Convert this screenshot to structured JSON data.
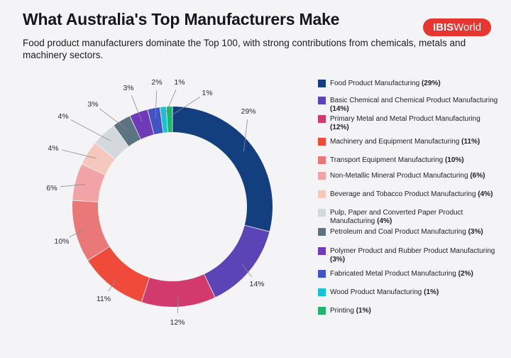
{
  "header": {
    "title": "What Australia's Top Manufacturers Make",
    "subtitle": "Food product manufacturers dominate the Top 100, with strong contributions from chemicals, metals and machinery sectors.",
    "brand_bold": "IBIS",
    "brand_light": "World",
    "brand_color": "#e7362f"
  },
  "chart_data": {
    "type": "pie",
    "style": "donut",
    "legend_position": "right",
    "categories": [
      "Food Product Manufacturing",
      "Basic Chemical and Chemical Product Manufacturing",
      "Primary Metal and Metal Product Manufacturing",
      "Machinery and Equipment Manufacturing",
      "Transport Equipment Manufacturing",
      "Non-Metallic Mineral Product Manufacturing",
      "Beverage and Tobacco Product Manufacturing",
      "Pulp, Paper and Converted Paper Product Manufacturing",
      "Petroleum and Coal Product Manufacturing",
      "Polymer Product and Rubber Product Manufacturing",
      "Fabricated Metal Product Manufacturing",
      "Wood Product Manufacturing",
      "Printing"
    ],
    "values": [
      29,
      14,
      12,
      11,
      10,
      6,
      4,
      4,
      3,
      3,
      2,
      1,
      1
    ],
    "labels": [
      "29%",
      "14%",
      "12%",
      "11%",
      "10%",
      "6%",
      "4%",
      "4%",
      "3%",
      "3%",
      "2%",
      "1%",
      "1%"
    ],
    "legend_values": [
      "(29%)",
      "(14%)",
      "(12%)",
      "(11%)",
      "(10%)",
      "(6%)",
      "(4%)",
      "(4%)",
      "(3%)",
      "(3%)",
      "(2%)",
      "(1%)",
      "(1%)"
    ],
    "colors": [
      "#143f7e",
      "#5b45b6",
      "#d23a6e",
      "#ef4a3a",
      "#ea7879",
      "#f2a3a6",
      "#f6c8bd",
      "#d3d8dd",
      "#5c7481",
      "#6f3ab7",
      "#4254c3",
      "#1ac0d8",
      "#21b56c"
    ]
  }
}
